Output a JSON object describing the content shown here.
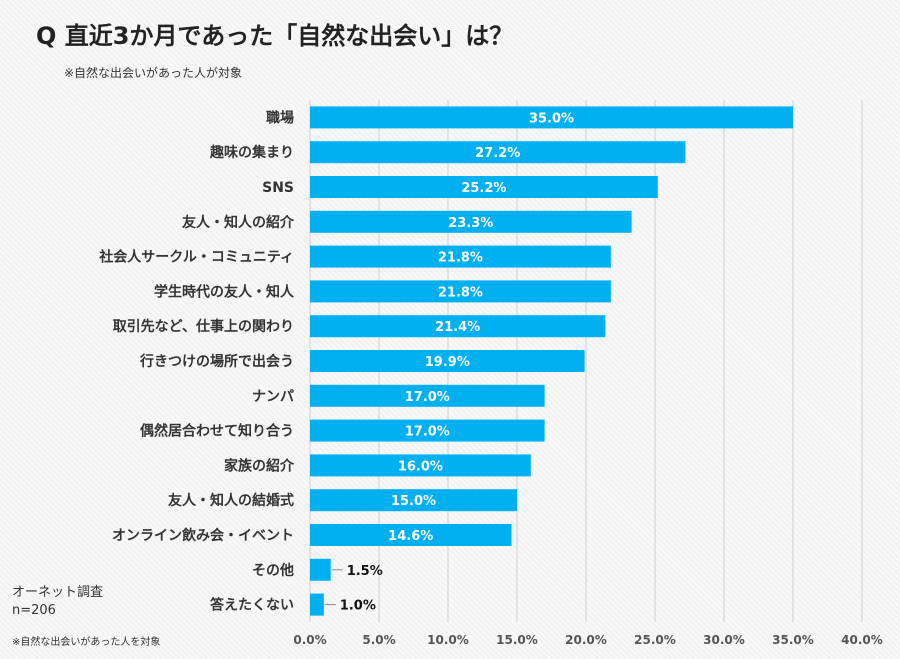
{
  "title": "Q 直近3か月であった「自然な出会い」は？",
  "subtitle": "※自然な出会いがあった人が対象",
  "source": {
    "line1": "オーネット調査",
    "line2": "n=206"
  },
  "footnote": "※自然な出会いがあった人を対象",
  "colors": {
    "bar": "#00b0f0",
    "grid": "#d0d0d0"
  },
  "chart_data": {
    "type": "bar",
    "orientation": "horizontal",
    "categories": [
      "職場",
      "趣味の集まり",
      "SNS",
      "友人・知人の紹介",
      "社会人サークル・コミュニティ",
      "学生時代の友人・知人",
      "取引先など、仕事上の関わり",
      "行きつけの場所で出会う",
      "ナンパ",
      "偶然居合わせて知り合う",
      "家族の紹介",
      "友人・知人の結婚式",
      "オンライン飲み会・イベント",
      "その他",
      "答えたくない"
    ],
    "values": [
      35.0,
      27.2,
      25.2,
      23.3,
      21.8,
      21.8,
      21.4,
      19.9,
      17.0,
      17.0,
      16.0,
      15.0,
      14.6,
      1.5,
      1.0
    ],
    "value_labels": [
      "35.0%",
      "27.2%",
      "25.2%",
      "23.3%",
      "21.8%",
      "21.8%",
      "21.4%",
      "19.9%",
      "17.0%",
      "17.0%",
      "16.0%",
      "15.0%",
      "14.6%",
      "1.5%",
      "1.0%"
    ],
    "xlim": [
      0,
      40
    ],
    "xticks": [
      "0.0%",
      "5.0%",
      "10.0%",
      "15.0%",
      "20.0%",
      "25.0%",
      "30.0%",
      "35.0%",
      "40.0%"
    ],
    "grid": "vertical",
    "legend": "none"
  }
}
